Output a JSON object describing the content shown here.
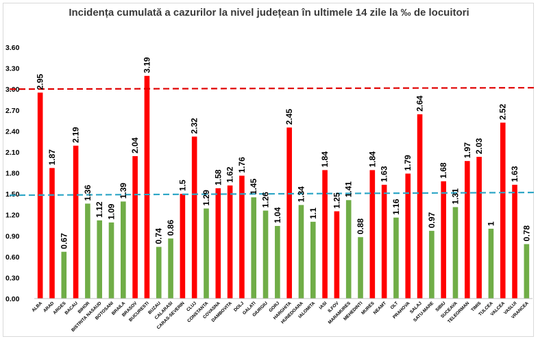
{
  "chart_data": {
    "type": "bar",
    "title": "Incidența cumulată a cazurilor la nivel județean în ultimele 14 zile la ‰ de locuitori",
    "xlabel": "",
    "ylabel": "",
    "ylim": [
      0,
      3.6
    ],
    "yticks": [
      "0.00",
      "0.30",
      "0.60",
      "0.90",
      "1.20",
      "1.50",
      "1.80",
      "2.10",
      "2.40",
      "2.70",
      "3.00",
      "3.30",
      "3.60"
    ],
    "grid": false,
    "legend": "none",
    "colors": {
      "above": "#ff0000",
      "below": "#70ad47",
      "line_high": "#e00000",
      "line_low": "#2ea6c6"
    },
    "reference_lines": [
      {
        "value_left": 3.0,
        "value_right": 3.02,
        "color": "#e00000"
      },
      {
        "value_left": 1.48,
        "value_right": 1.52,
        "color": "#2ea6c6"
      }
    ],
    "categories": [
      "ALBA",
      "ARAD",
      "ARGES",
      "BACAU",
      "BIHOR",
      "BISTRITA NASAUD",
      "BOTOSANI",
      "BRAILA",
      "BRASOV",
      "BUCURESTI",
      "BUZAU",
      "CALARASI",
      "CARAS-SEVERIN",
      "CLUJ",
      "CONSTANTA",
      "COVASNA",
      "DAMBOVITA",
      "DOLJ",
      "GALATI",
      "GIURGIU",
      "GORJ",
      "HARGHITA",
      "HUNEDOARA",
      "IALOMITA",
      "IASI",
      "ILFOV",
      "MARAMURES",
      "MEHEDINTI",
      "MURES",
      "NEAMT",
      "OLT",
      "PRAHOVA",
      "SALAJ",
      "SATU-MARE",
      "SIBIU",
      "SUCEAVA",
      "TELEORMAN",
      "TIMIS",
      "TULCEA",
      "VALCEA",
      "VASLUI",
      "VRANCEA"
    ],
    "values": [
      2.95,
      1.87,
      0.67,
      2.19,
      1.36,
      1.12,
      1.09,
      1.39,
      2.04,
      3.19,
      0.74,
      0.86,
      1.5,
      2.32,
      1.29,
      1.58,
      1.62,
      1.76,
      1.45,
      1.26,
      1.04,
      2.45,
      1.34,
      1.1,
      1.84,
      1.25,
      1.41,
      0.88,
      1.84,
      1.63,
      1.16,
      1.79,
      2.64,
      0.97,
      1.68,
      1.31,
      1.97,
      2.03,
      1,
      2.52,
      1.63,
      0.78
    ],
    "value_labels": [
      "2.95",
      "1.87",
      "0.67",
      "2.19",
      "1.36",
      "1.12",
      "1.09",
      "1.39",
      "2.04",
      "3.19",
      "0.74",
      "0.86",
      "1.5",
      "2.32",
      "1.29",
      "1.58",
      "1.62",
      "1.76",
      "1.45",
      "1.26",
      "1.04",
      "2.45",
      "1.34",
      "1.1",
      "1.84",
      "1.25",
      "1.41",
      "0.88",
      "1.84",
      "1.63",
      "1.16",
      "1.79",
      "2.64",
      "0.97",
      "1.68",
      "1.31",
      "1.97",
      "2.03",
      "1",
      "2.52",
      "1.63",
      "0.78"
    ],
    "series_color_by_bar": [
      "red",
      "red",
      "green",
      "red",
      "green",
      "green",
      "green",
      "green",
      "red",
      "red",
      "green",
      "green",
      "red",
      "red",
      "green",
      "red",
      "red",
      "red",
      "green",
      "green",
      "green",
      "red",
      "green",
      "green",
      "red",
      "red",
      "green",
      "green",
      "red",
      "red",
      "green",
      "red",
      "red",
      "green",
      "red",
      "green",
      "red",
      "red",
      "green",
      "red",
      "red",
      "green"
    ]
  }
}
